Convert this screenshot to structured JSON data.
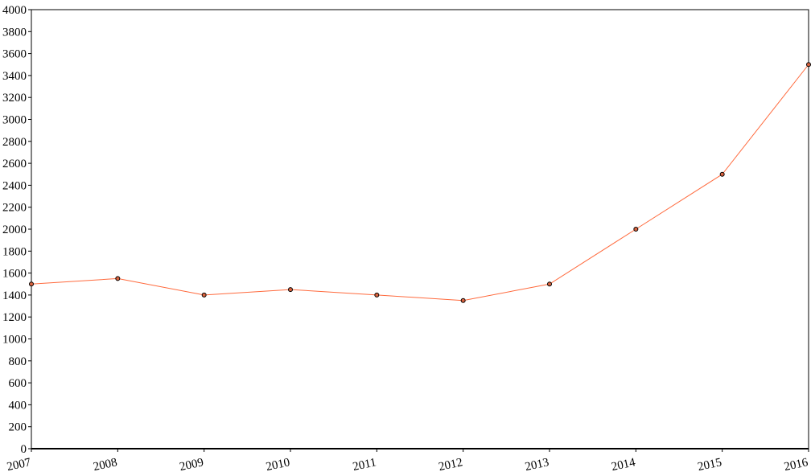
{
  "chart_data": {
    "type": "line",
    "title": "",
    "xlabel": "",
    "ylabel": "",
    "categories": [
      "2007",
      "2008",
      "2009",
      "2010",
      "2011",
      "2012",
      "2013",
      "2014",
      "2015",
      "2016"
    ],
    "series": [
      {
        "values": [
          1500,
          1550,
          1400,
          1450,
          1400,
          1350,
          1500,
          2000,
          2500,
          3500
        ]
      }
    ],
    "ylim": [
      0,
      4000
    ],
    "yticks": [
      0,
      200,
      400,
      600,
      800,
      1000,
      1200,
      1400,
      1600,
      1800,
      2000,
      2200,
      2400,
      2600,
      2800,
      3000,
      3200,
      3400,
      3600,
      3800,
      4000
    ],
    "grid": false,
    "legend": "none",
    "colors": {
      "line": "#ff6a3d",
      "marker_fill": "#d9633f",
      "marker_stroke": "#000000",
      "axis": "#000000"
    }
  }
}
